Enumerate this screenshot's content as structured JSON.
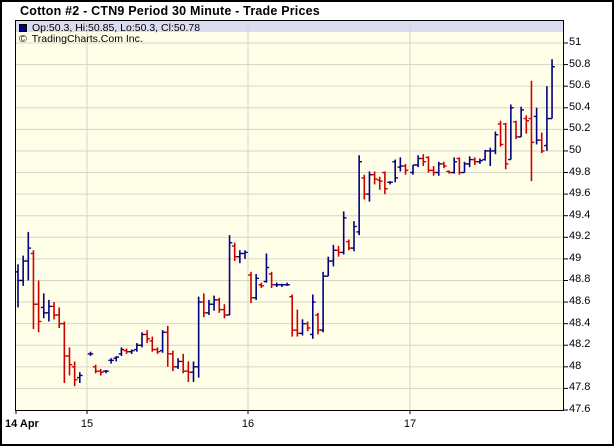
{
  "window": {
    "title": "Cotton #2 - CTN9 Period 30 Minute - Trade Prices"
  },
  "legend": {
    "marker_color": "#000080",
    "ohlc_summary": "Op:50.3, Hi:50.85, Lo:50.3, Cl:50.78",
    "copyright_symbol": "©",
    "copyright_text": "TradingCharts.Com Inc."
  },
  "last_bar": {
    "open": 50.3,
    "high": 50.85,
    "low": 50.3,
    "close": 50.78
  },
  "chart_data": {
    "type": "bar",
    "subtype": "ohlc-bars",
    "title": "Cotton #2 - CTN9 Period 30 Minute - Trade Prices",
    "xlabel": "",
    "ylabel": "",
    "ylim": [
      47.6,
      51.0
    ],
    "y_tick_step": 0.2,
    "grid": true,
    "legend_position": "top-left",
    "y_ticks": [
      "51",
      "50.8",
      "50.6",
      "50.4",
      "50.2",
      "50",
      "49.8",
      "49.6",
      "49.4",
      "49.2",
      "49",
      "48.8",
      "48.6",
      "48.4",
      "48.2",
      "48",
      "47.8",
      "47.6"
    ],
    "x_ticks": [
      "14 Apr",
      "15",
      "16",
      "17"
    ],
    "colors": {
      "up": "#000080",
      "down": "#cc0000",
      "plot_background": "#ffffe9",
      "legend_strip": "#dcdcf0",
      "grid": "#d6d6c4",
      "border": "#000000",
      "page_background": "#ffffff"
    },
    "series_note": "OHLC values per 30-minute bar, estimated from chart pixels",
    "days": [
      {
        "date": "14 Apr",
        "bars": [
          [
            48.88,
            48.95,
            48.55,
            48.8
          ],
          [
            48.8,
            49.03,
            48.75,
            48.98
          ],
          [
            48.98,
            49.25,
            48.8,
            49.1
          ],
          [
            49.05,
            49.08,
            48.35,
            48.58
          ],
          [
            48.58,
            48.8,
            48.32,
            48.42
          ],
          [
            48.55,
            48.68,
            48.45,
            48.5
          ],
          [
            48.5,
            48.62,
            48.42,
            48.56
          ],
          [
            48.56,
            48.6,
            48.44,
            48.48
          ],
          [
            48.48,
            48.55,
            48.36,
            48.4
          ],
          [
            48.4,
            48.42,
            47.85,
            48.1
          ],
          [
            48.1,
            48.18,
            47.92,
            48.02
          ],
          [
            48.0,
            48.05,
            47.82,
            47.88
          ],
          [
            47.9,
            47.95,
            47.85,
            47.92
          ]
        ]
      },
      {
        "date": "15",
        "bars": [
          [
            48.12,
            48.14,
            48.1,
            48.12
          ],
          [
            48.0,
            48.02,
            47.94,
            47.96
          ],
          [
            47.96,
            47.98,
            47.92,
            47.95
          ],
          [
            47.96,
            47.97,
            47.94,
            47.96
          ],
          [
            48.06,
            48.08,
            48.03,
            48.06
          ],
          [
            48.08,
            48.1,
            48.05,
            48.09
          ],
          [
            48.12,
            48.18,
            48.1,
            48.16
          ],
          [
            48.15,
            48.17,
            48.12,
            48.14
          ],
          [
            48.14,
            48.16,
            48.12,
            48.15
          ],
          [
            48.16,
            48.22,
            48.14,
            48.2
          ],
          [
            48.2,
            48.32,
            48.18,
            48.3
          ],
          [
            48.3,
            48.34,
            48.22,
            48.26
          ],
          [
            48.24,
            48.28,
            48.14,
            48.16
          ],
          [
            48.16,
            48.18,
            48.12,
            48.14
          ],
          [
            48.15,
            48.34,
            48.13,
            48.32
          ],
          [
            48.32,
            48.38,
            48.0,
            48.12
          ],
          [
            48.12,
            48.15,
            47.96,
            48.0
          ],
          [
            48.0,
            48.08,
            47.98,
            48.05
          ],
          [
            48.05,
            48.12,
            47.94,
            47.96
          ],
          [
            47.96,
            48.05,
            47.86,
            47.95
          ],
          [
            47.95,
            48.05,
            47.86,
            48.0
          ],
          [
            48.0,
            48.65,
            47.9,
            48.6
          ],
          [
            48.6,
            48.68,
            48.46,
            48.5
          ],
          [
            48.5,
            48.62,
            48.48,
            48.58
          ],
          [
            48.58,
            48.66,
            48.52,
            48.62
          ],
          [
            48.62,
            48.64,
            48.5,
            48.53
          ],
          [
            48.53,
            48.58,
            48.45,
            48.48
          ],
          [
            48.48,
            49.22,
            48.48,
            49.15
          ],
          [
            49.12,
            49.15,
            48.98,
            49.02
          ],
          [
            49.02,
            49.08,
            48.96,
            49.05
          ],
          [
            49.05,
            49.08,
            49.0,
            49.06
          ]
        ]
      },
      {
        "date": "16",
        "bars": [
          [
            48.85,
            48.88,
            48.59,
            48.64
          ],
          [
            48.64,
            48.86,
            48.62,
            48.82
          ],
          [
            48.76,
            48.78,
            48.73,
            48.75
          ],
          [
            48.79,
            49.05,
            48.78,
            48.92
          ],
          [
            48.86,
            48.88,
            48.73,
            48.76
          ],
          [
            48.76,
            48.78,
            48.74,
            48.76
          ],
          [
            48.76,
            48.77,
            48.74,
            48.76
          ],
          [
            48.76,
            48.78,
            48.75,
            48.76
          ],
          [
            48.65,
            48.67,
            48.28,
            48.34
          ],
          [
            48.34,
            48.53,
            48.28,
            48.31
          ],
          [
            48.31,
            48.44,
            48.29,
            48.4
          ],
          [
            48.4,
            48.42,
            48.33,
            48.36
          ],
          [
            48.3,
            48.67,
            48.26,
            48.6
          ],
          [
            48.48,
            48.5,
            48.3,
            48.34
          ],
          [
            48.34,
            48.88,
            48.32,
            48.84
          ],
          [
            48.84,
            49.02,
            48.84,
            48.98
          ],
          [
            48.98,
            49.13,
            48.93,
            49.08
          ],
          [
            49.08,
            49.12,
            49.02,
            49.06
          ],
          [
            49.06,
            49.44,
            49.04,
            49.38
          ],
          [
            49.16,
            49.18,
            49.08,
            49.1
          ],
          [
            49.1,
            49.35,
            49.07,
            49.3
          ],
          [
            49.25,
            49.96,
            49.22,
            49.9
          ],
          [
            49.75,
            49.78,
            49.55,
            49.6
          ],
          [
            49.6,
            49.81,
            49.53,
            49.78
          ],
          [
            49.78,
            49.81,
            49.69,
            49.74
          ],
          [
            49.73,
            49.76,
            49.64,
            49.72
          ],
          [
            49.8,
            49.81,
            49.6,
            49.65
          ],
          [
            49.71,
            49.72,
            49.69,
            49.71
          ],
          [
            49.9,
            49.92,
            49.71,
            49.75
          ],
          [
            49.85,
            49.94,
            49.81,
            49.86
          ],
          [
            49.86,
            49.88,
            49.78,
            49.82
          ]
        ]
      },
      {
        "date": "17",
        "bars": [
          [
            49.8,
            49.87,
            49.78,
            49.87
          ],
          [
            49.87,
            49.96,
            49.85,
            49.93
          ],
          [
            49.93,
            49.97,
            49.86,
            49.9
          ],
          [
            49.94,
            49.95,
            49.8,
            49.82
          ],
          [
            49.82,
            49.86,
            49.77,
            49.8
          ],
          [
            49.8,
            49.9,
            49.77,
            49.88
          ],
          [
            49.88,
            49.9,
            49.84,
            49.86
          ],
          [
            49.81,
            49.82,
            49.79,
            49.8
          ],
          [
            49.8,
            49.94,
            49.79,
            49.9
          ],
          [
            49.93,
            49.94,
            49.78,
            49.8
          ],
          [
            49.8,
            49.9,
            49.8,
            49.88
          ],
          [
            49.88,
            49.95,
            49.85,
            49.92
          ],
          [
            49.92,
            49.94,
            49.87,
            49.9
          ],
          [
            49.9,
            49.93,
            49.88,
            49.91
          ],
          [
            49.92,
            50.01,
            49.91,
            50.0
          ],
          [
            50.0,
            50.03,
            49.86,
            50.0
          ],
          [
            50.0,
            50.18,
            49.97,
            50.15
          ],
          [
            50.25,
            50.28,
            50.04,
            50.06
          ],
          [
            50.25,
            50.26,
            49.83,
            49.88
          ],
          [
            49.92,
            50.43,
            49.92,
            50.4
          ],
          [
            50.27,
            50.28,
            50.11,
            50.13
          ],
          [
            50.13,
            50.41,
            50.13,
            50.38
          ],
          [
            50.3,
            50.33,
            50.16,
            50.28
          ],
          [
            50.3,
            50.65,
            49.72,
            50.08
          ],
          [
            50.32,
            50.4,
            50.06,
            50.1
          ],
          [
            50.1,
            50.17,
            49.98,
            50.0
          ],
          [
            50.05,
            50.6,
            50.0,
            50.3
          ],
          [
            50.3,
            50.85,
            50.3,
            50.78
          ]
        ]
      }
    ]
  }
}
